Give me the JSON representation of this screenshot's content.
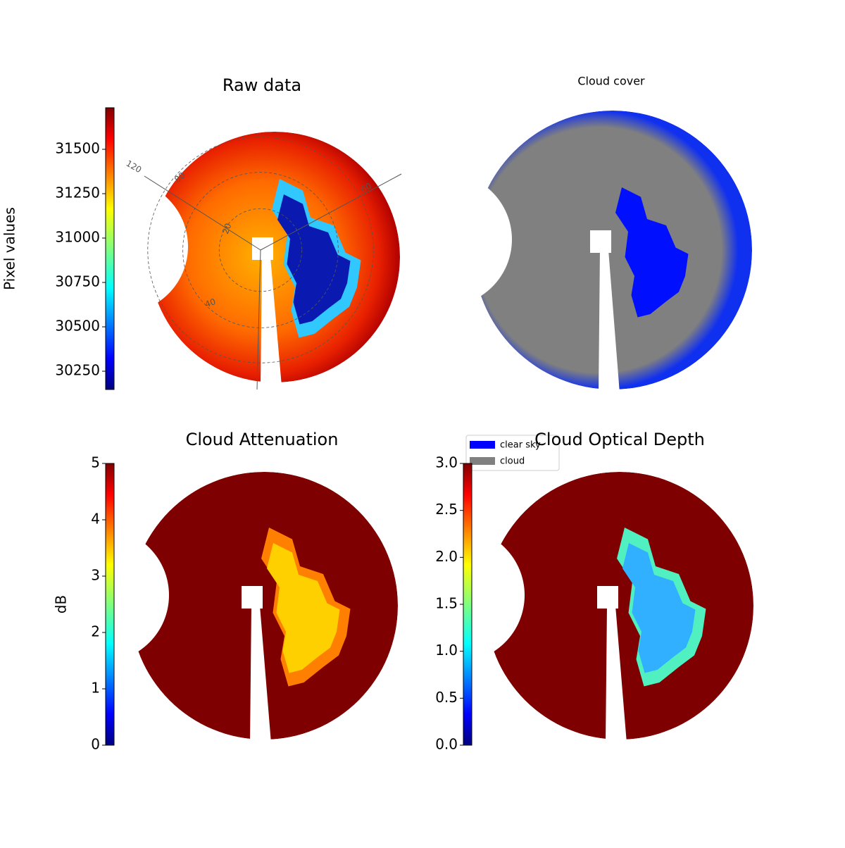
{
  "chart_data": [
    {
      "type": "image",
      "title": "Raw data",
      "colorbar_label": "Pixel values",
      "colormap": "jet",
      "clim": [
        30147,
        31734
      ],
      "cticks": [
        30250,
        30500,
        30750,
        31000,
        31250,
        31500
      ],
      "annotations": [
        "120",
        "80",
        "60",
        "20",
        "40"
      ]
    },
    {
      "type": "image",
      "title": "Cloud cover",
      "series": [
        {
          "name": "clear sky",
          "color": "#0000ff"
        },
        {
          "name": "cloud",
          "color": "#808080"
        }
      ]
    },
    {
      "type": "image",
      "title": "Cloud Attenuation",
      "colorbar_label": "dB",
      "colormap": "jet",
      "clim": [
        0,
        5
      ],
      "cticks": [
        0,
        1,
        2,
        3,
        4,
        5
      ]
    },
    {
      "type": "image",
      "title": "Cloud Optical Depth",
      "colormap": "jet",
      "clim": [
        0,
        3
      ],
      "cticks": [
        {
          "value": 0,
          "label": "0.0"
        },
        0.5,
        {
          "value": 1,
          "label": "1.0"
        },
        1.5,
        {
          "value": 2,
          "label": "2.0"
        },
        2.5,
        {
          "value": 3,
          "label": "3.0"
        }
      ]
    }
  ]
}
